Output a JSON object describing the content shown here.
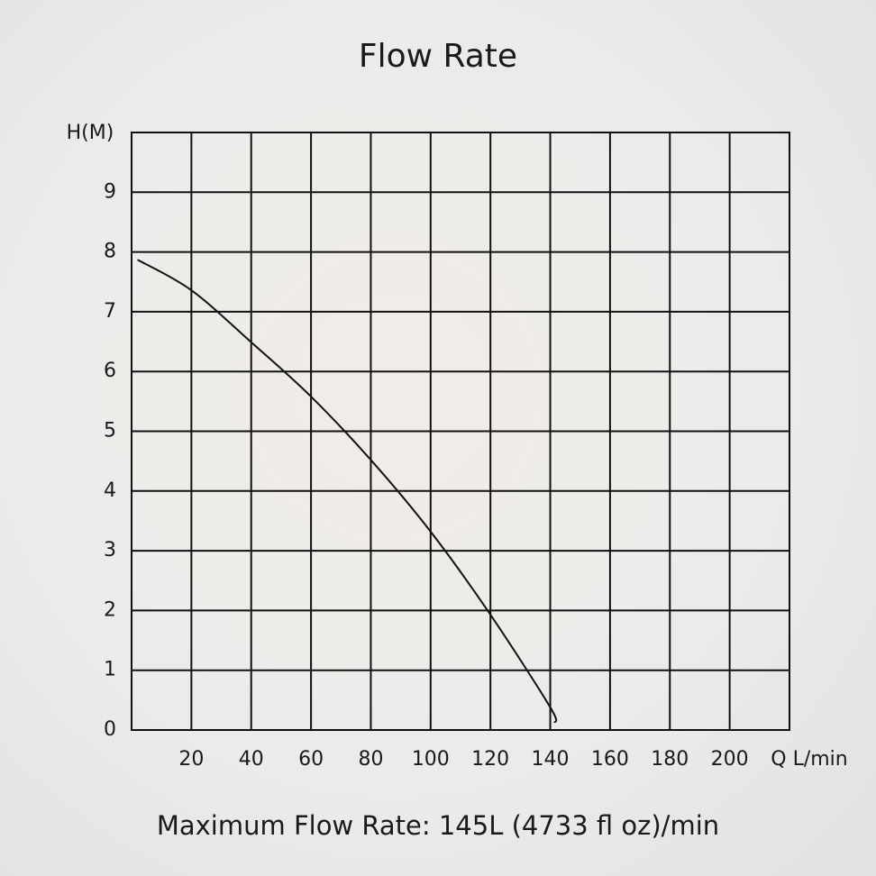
{
  "chart_data": {
    "type": "line",
    "title": "Flow Rate",
    "y_label": "H(M)",
    "x_label": "Q L/min",
    "subtitle": "Maximum Flow Rate: 145L (4733 fl oz)/min",
    "x": [
      2,
      20,
      40,
      60,
      80,
      100,
      120,
      140,
      141.5
    ],
    "values": [
      7.87,
      7.36,
      6.49,
      5.58,
      4.52,
      3.32,
      1.93,
      0.38,
      0.12
    ],
    "color": "#111111",
    "xlim": [
      0,
      220
    ],
    "ylim": [
      0,
      10
    ],
    "xticks": [
      20,
      40,
      60,
      80,
      100,
      120,
      140,
      160,
      180,
      200
    ],
    "yticks": [
      0,
      1,
      2,
      3,
      4,
      5,
      6,
      7,
      8,
      9
    ],
    "grid": true
  }
}
